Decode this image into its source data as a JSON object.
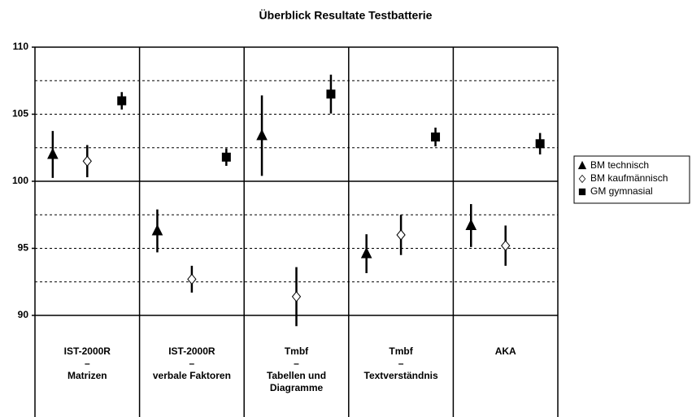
{
  "chart_data": {
    "type": "errorbar",
    "title": "Überblick Resultate Testbatterie",
    "categories": [
      [
        "IST-2000R",
        "–",
        "Matrizen"
      ],
      [
        "IST-2000R",
        "–",
        "verbale Faktoren"
      ],
      [
        "Tmbf",
        "–",
        "Tabellen und Diagramme"
      ],
      [
        "Tmbf",
        "–",
        "Textverständnis"
      ],
      [
        "AKA"
      ]
    ],
    "series": [
      {
        "name": "BM technisch",
        "color": "#000000",
        "marker": "triangle",
        "values": [
          102,
          96.3,
          103.4,
          94.6,
          96.7
        ],
        "errors": [
          1.75,
          1.6,
          3,
          1.45,
          1.6
        ]
      },
      {
        "name": "BM kaufmännisch",
        "color": "#ffffff",
        "marker": "diamond",
        "values": [
          101.5,
          92.7,
          91.4,
          96,
          95.2
        ],
        "errors": [
          1.2,
          1.0,
          2.2,
          1.5,
          1.5
        ]
      },
      {
        "name": "GM gymnasial",
        "color": "#000000",
        "marker": "square",
        "values": [
          106,
          101.8,
          106.5,
          103.3,
          102.8
        ],
        "errors": [
          0.65,
          0.65,
          1.45,
          0.7,
          0.8
        ]
      }
    ],
    "ylim": [
      90,
      110
    ],
    "yticks": [
      90,
      95,
      100,
      105,
      110
    ],
    "minor_grid": [
      92.5,
      95,
      97.5,
      102.5,
      105,
      107.5
    ],
    "reference_line": 100,
    "legend": "right"
  }
}
